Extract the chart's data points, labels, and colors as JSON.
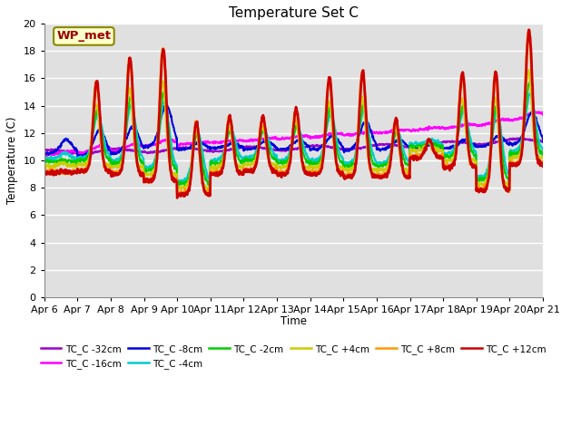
{
  "title": "Temperature Set C",
  "xlabel": "Time",
  "ylabel": "Temperature (C)",
  "ylim": [
    0,
    20
  ],
  "yticks": [
    0,
    2,
    4,
    6,
    8,
    10,
    12,
    14,
    16,
    18,
    20
  ],
  "plot_bg_color": "#e0e0e0",
  "fig_bg_color": "#ffffff",
  "grid_color": "#ffffff",
  "annotation_text": "WP_met",
  "annotation_bg": "#ffffcc",
  "annotation_border": "#888800",
  "annotation_text_color": "#990000",
  "series": [
    {
      "label": "TC_C -32cm",
      "color": "#9900cc",
      "lw": 1.5
    },
    {
      "label": "TC_C -16cm",
      "color": "#ff00ff",
      "lw": 1.5
    },
    {
      "label": "TC_C -8cm",
      "color": "#0000dd",
      "lw": 1.5
    },
    {
      "label": "TC_C -4cm",
      "color": "#00cccc",
      "lw": 1.5
    },
    {
      "label": "TC_C -2cm",
      "color": "#00cc00",
      "lw": 1.5
    },
    {
      "label": "TC_C +4cm",
      "color": "#cccc00",
      "lw": 1.5
    },
    {
      "label": "TC_C +8cm",
      "color": "#ff9900",
      "lw": 2.0
    },
    {
      "label": "TC_C +12cm",
      "color": "#cc0000",
      "lw": 2.0
    }
  ],
  "x_tick_labels": [
    "Apr 6",
    "Apr 7",
    "Apr 8",
    "Apr 9",
    "Apr 10",
    "Apr 11",
    "Apr 12",
    "Apr 13",
    "Apr 14",
    "Apr 15",
    "Apr 16",
    "Apr 17",
    "Apr 18",
    "Apr 19",
    "Apr 20",
    "Apr 21"
  ]
}
